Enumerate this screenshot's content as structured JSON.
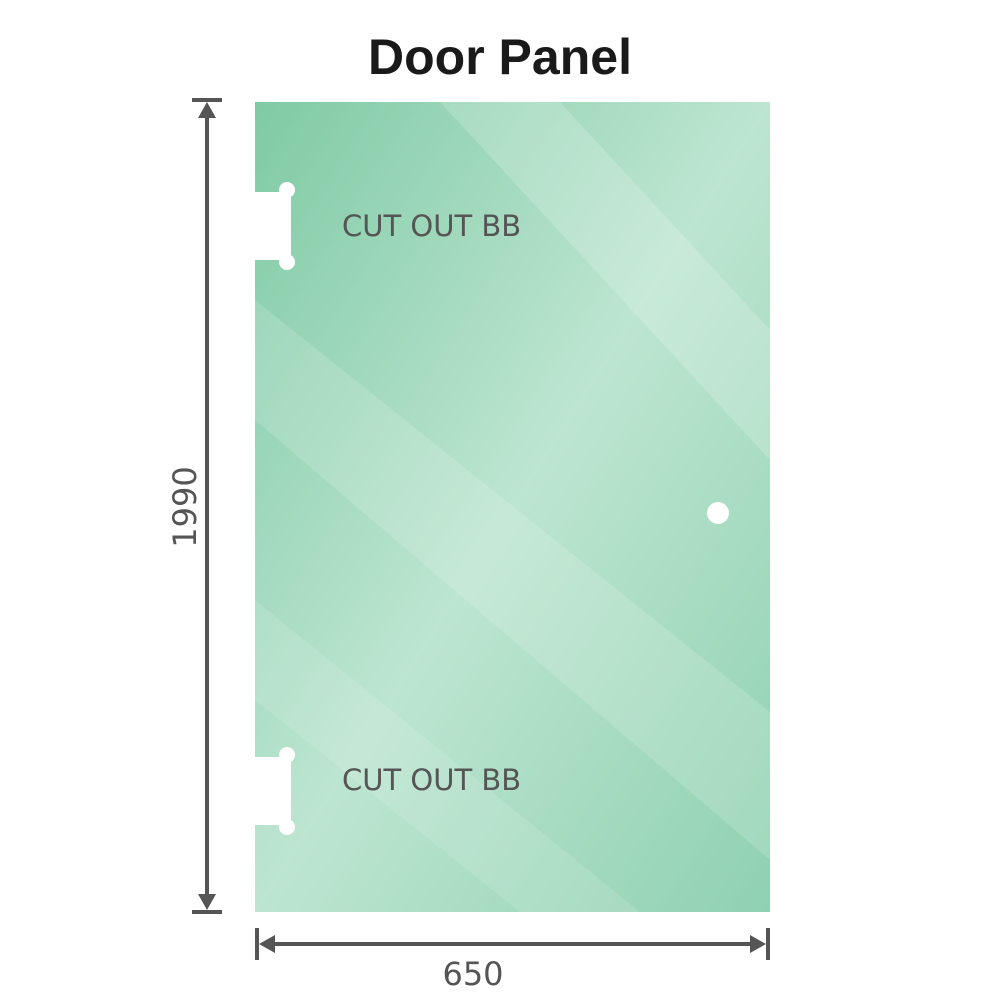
{
  "title": "Door Panel",
  "cutout_top_label": "CUT OUT BB",
  "cutout_bottom_label": "CUT OUT BB",
  "height_dimension": "1990",
  "width_dimension": "650",
  "colors": {
    "glass": "#8fd1b0",
    "glass_light": "#bfe6d2",
    "dimension": "#555555"
  }
}
